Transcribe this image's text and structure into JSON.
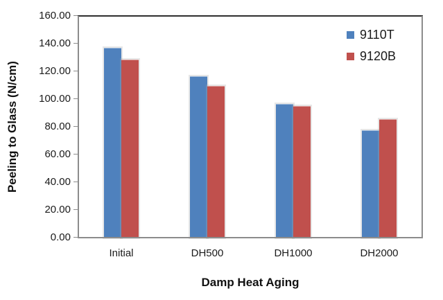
{
  "chart_data": {
    "type": "bar",
    "title": "",
    "xlabel": "Damp Heat Aging",
    "ylabel": "Peeling to Glass (N/cm)",
    "categories": [
      "Initial",
      "DH500",
      "DH1000",
      "DH2000"
    ],
    "series": [
      {
        "name": "9110T",
        "color": "#4F81BD",
        "values": [
          137.0,
          116.5,
          96.5,
          77.5
        ]
      },
      {
        "name": "9120B",
        "color": "#C0504D",
        "values": [
          128.5,
          109.5,
          95.0,
          85.5
        ]
      }
    ],
    "ylim": [
      0,
      160
    ],
    "yticks": [
      0,
      20,
      40,
      60,
      80,
      100,
      120,
      140,
      160
    ],
    "ytick_decimals": 2,
    "grid": false,
    "legend": {
      "position": "top-right-inside",
      "entries": [
        "9110T",
        "9120B"
      ]
    }
  },
  "style": {
    "bar_blue": "#4F81BD",
    "bar_red": "#C0504D",
    "axis_line_color": "#8C8C8C",
    "plot_top_border_color": "#2E2E2E",
    "text_color": "#1A1A1A"
  }
}
